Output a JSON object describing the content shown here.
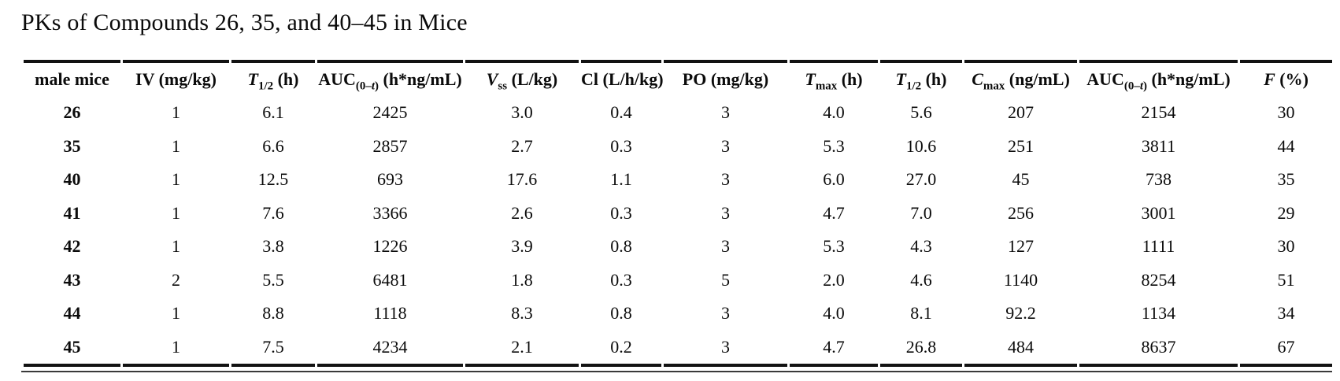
{
  "page": {
    "background": "#ffffff",
    "text_color": "#0b0b0b",
    "rule_color": "#121212"
  },
  "title": "PKs of Compounds 26, 35, and 40–45 in Mice",
  "table": {
    "headers": [
      {
        "label": "male mice",
        "segs": [
          {
            "t": "male mice"
          }
        ]
      },
      {
        "label": "IV (mg/kg)",
        "segs": [
          {
            "t": "IV (mg/kg)"
          }
        ]
      },
      {
        "label": "T1/2 (h)",
        "segs": [
          {
            "t": "T",
            "f": "i"
          },
          {
            "t": "1/2",
            "f": "sub"
          },
          {
            "t": " (h)"
          }
        ]
      },
      {
        "label": "AUC(0–t) (h*ng/mL)",
        "segs": [
          {
            "t": "AUC"
          },
          {
            "t": "(0–",
            "f": "sub"
          },
          {
            "t": "t",
            "f": "subi"
          },
          {
            "t": ")",
            "f": "sub"
          },
          {
            "t": " (h*ng/mL)"
          }
        ]
      },
      {
        "label": "Vss (L/kg)",
        "segs": [
          {
            "t": "V",
            "f": "i"
          },
          {
            "t": "ss",
            "f": "sub"
          },
          {
            "t": " (L/kg)"
          }
        ]
      },
      {
        "label": "Cl (L/h/kg)",
        "segs": [
          {
            "t": "Cl (L/h/kg)"
          }
        ]
      },
      {
        "label": "PO (mg/kg)",
        "segs": [
          {
            "t": "PO (mg/kg)"
          }
        ]
      },
      {
        "label": "Tmax (h)",
        "segs": [
          {
            "t": "T",
            "f": "i"
          },
          {
            "t": "max",
            "f": "sub"
          },
          {
            "t": " (h)"
          }
        ]
      },
      {
        "label": "T1/2 (h)",
        "segs": [
          {
            "t": "T",
            "f": "i"
          },
          {
            "t": "1/2",
            "f": "sub"
          },
          {
            "t": " (h)"
          }
        ]
      },
      {
        "label": "Cmax (ng/mL)",
        "segs": [
          {
            "t": "C",
            "f": "i"
          },
          {
            "t": "max",
            "f": "sub"
          },
          {
            "t": " (ng/mL)"
          }
        ]
      },
      {
        "label": "AUC(0–t) (h*ng/mL)",
        "segs": [
          {
            "t": "AUC"
          },
          {
            "t": "(0–",
            "f": "sub"
          },
          {
            "t": "t",
            "f": "subi"
          },
          {
            "t": ")",
            "f": "sub"
          },
          {
            "t": " (h*ng/mL)"
          }
        ]
      },
      {
        "label": "F (%)",
        "segs": [
          {
            "t": "F",
            "f": "i"
          },
          {
            "t": " (%)"
          }
        ]
      }
    ],
    "rows": [
      {
        "compound": "26",
        "cells": [
          "1",
          "6.1",
          "2425",
          "3.0",
          "0.4",
          "3",
          "4.0",
          "5.6",
          "207",
          "2154",
          "30"
        ]
      },
      {
        "compound": "35",
        "cells": [
          "1",
          "6.6",
          "2857",
          "2.7",
          "0.3",
          "3",
          "5.3",
          "10.6",
          "251",
          "3811",
          "44"
        ]
      },
      {
        "compound": "40",
        "cells": [
          "1",
          "12.5",
          "693",
          "17.6",
          "1.1",
          "3",
          "6.0",
          "27.0",
          "45",
          "738",
          "35"
        ]
      },
      {
        "compound": "41",
        "cells": [
          "1",
          "7.6",
          "3366",
          "2.6",
          "0.3",
          "3",
          "4.7",
          "7.0",
          "256",
          "3001",
          "29"
        ]
      },
      {
        "compound": "42",
        "cells": [
          "1",
          "3.8",
          "1226",
          "3.9",
          "0.8",
          "3",
          "5.3",
          "4.3",
          "127",
          "1111",
          "30"
        ]
      },
      {
        "compound": "43",
        "cells": [
          "2",
          "5.5",
          "6481",
          "1.8",
          "0.3",
          "5",
          "2.0",
          "4.6",
          "1140",
          "8254",
          "51"
        ]
      },
      {
        "compound": "44",
        "cells": [
          "1",
          "8.8",
          "1118",
          "8.3",
          "0.8",
          "3",
          "4.0",
          "8.1",
          "92.2",
          "1134",
          "34"
        ]
      },
      {
        "compound": "45",
        "cells": [
          "1",
          "7.5",
          "4234",
          "2.1",
          "0.2",
          "3",
          "4.7",
          "26.8",
          "484",
          "8637",
          "67"
        ]
      }
    ]
  },
  "chart_data": {
    "type": "table",
    "title": "PKs of Compounds 26, 35, and 40–45 in Mice",
    "columns": [
      "male mice",
      "IV (mg/kg)",
      "T1/2 (h)",
      "AUC(0–t) (h*ng/mL)",
      "Vss (L/kg)",
      "Cl (L/h/kg)",
      "PO (mg/kg)",
      "Tmax (h)",
      "T1/2 (h)",
      "Cmax (ng/mL)",
      "AUC(0–t) (h*ng/mL)",
      "F (%)"
    ],
    "rows": [
      [
        "26",
        1,
        6.1,
        2425,
        3.0,
        0.4,
        3,
        4.0,
        5.6,
        207,
        2154,
        30
      ],
      [
        "35",
        1,
        6.6,
        2857,
        2.7,
        0.3,
        3,
        5.3,
        10.6,
        251,
        3811,
        44
      ],
      [
        "40",
        1,
        12.5,
        693,
        17.6,
        1.1,
        3,
        6.0,
        27.0,
        45,
        738,
        35
      ],
      [
        "41",
        1,
        7.6,
        3366,
        2.6,
        0.3,
        3,
        4.7,
        7.0,
        256,
        3001,
        29
      ],
      [
        "42",
        1,
        3.8,
        1226,
        3.9,
        0.8,
        3,
        5.3,
        4.3,
        127,
        1111,
        30
      ],
      [
        "43",
        2,
        5.5,
        6481,
        1.8,
        0.3,
        5,
        2.0,
        4.6,
        1140,
        8254,
        51
      ],
      [
        "44",
        1,
        8.8,
        1118,
        8.3,
        0.8,
        3,
        4.0,
        8.1,
        92.2,
        1134,
        34
      ],
      [
        "45",
        1,
        7.5,
        4234,
        2.1,
        0.2,
        3,
        4.7,
        26.8,
        484,
        8637,
        67
      ]
    ]
  }
}
